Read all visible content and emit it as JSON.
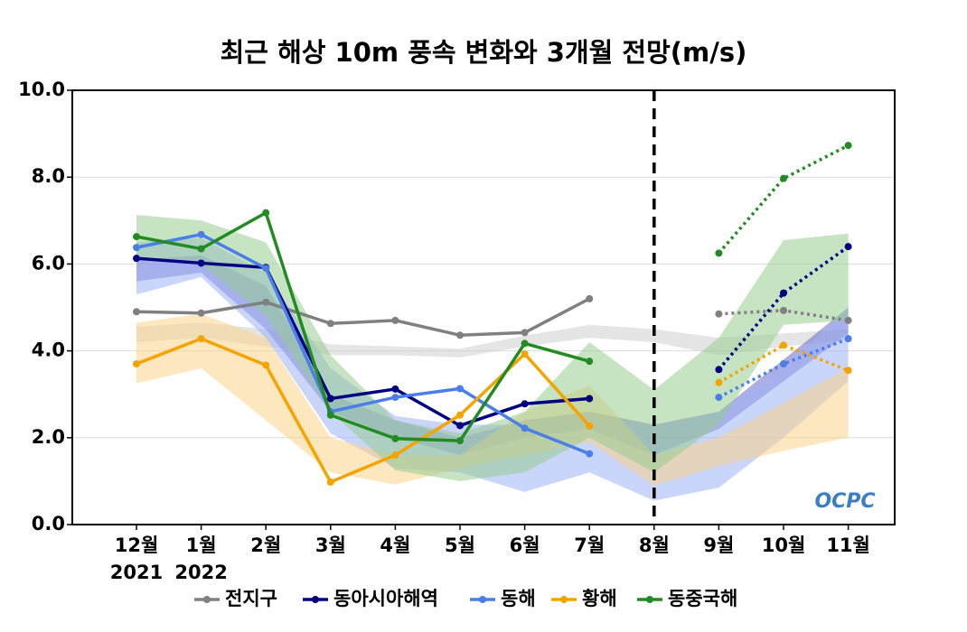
{
  "chart_data": {
    "type": "line",
    "title": "최근 해상 10m 풍속 변화와 3개월 전망(m/s)",
    "categories": [
      "12월",
      "1월",
      "2월",
      "3월",
      "4월",
      "5월",
      "6월",
      "7월",
      "8월",
      "9월",
      "10월",
      "11월"
    ],
    "category_sublabels": [
      "2021",
      "2022",
      null,
      null,
      null,
      null,
      null,
      null,
      null,
      null,
      null,
      null
    ],
    "divider_category": "8월",
    "forecast_start_category": "9월",
    "ylim": [
      0,
      10
    ],
    "yticks": [
      {
        "value": 0,
        "label": "0.0"
      },
      {
        "value": 2,
        "label": "2.0"
      },
      {
        "value": 4,
        "label": "4.0"
      },
      {
        "value": 6,
        "label": "6.0"
      },
      {
        "value": 8,
        "label": "8.0"
      },
      {
        "value": 10,
        "label": "10.0"
      }
    ],
    "grid": true,
    "legend": "bottom",
    "logo": "OCPC",
    "series": [
      {
        "name": "전지구",
        "color": "#808080",
        "band_color": "#d0d0d0",
        "values": [
          4.9,
          4.87,
          5.12,
          4.63,
          4.7,
          4.36,
          4.42,
          5.2,
          null,
          4.85,
          4.93,
          4.7
        ],
        "band_lower": [
          4.2,
          4.3,
          4.1,
          3.9,
          3.9,
          3.85,
          4.1,
          4.3,
          4.2,
          3.9,
          4.1,
          4.25
        ],
        "band_upper": [
          4.55,
          4.65,
          4.5,
          4.15,
          4.1,
          4.05,
          4.35,
          4.6,
          4.5,
          4.3,
          4.4,
          4.5
        ]
      },
      {
        "name": "동아시아해역",
        "color": "#000080",
        "band_color": "#6a6ac8",
        "values": [
          6.13,
          6.02,
          5.92,
          2.9,
          3.12,
          2.28,
          2.78,
          2.9,
          null,
          3.57,
          5.33,
          6.4
        ],
        "band_lower": [
          5.6,
          5.8,
          4.5,
          2.6,
          2.0,
          1.6,
          2.0,
          2.2,
          1.6,
          2.2,
          3.3,
          4.4
        ],
        "band_upper": [
          6.1,
          6.2,
          5.5,
          3.0,
          2.4,
          2.0,
          2.4,
          2.6,
          2.3,
          2.6,
          3.8,
          5.0
        ]
      },
      {
        "name": "동해",
        "color": "#4a7ee8",
        "band_color": "#9fb3f5",
        "values": [
          6.38,
          6.68,
          5.9,
          2.6,
          2.93,
          3.13,
          2.22,
          1.63,
          null,
          2.93,
          3.7,
          4.28
        ],
        "band_lower": [
          5.3,
          5.7,
          4.3,
          2.1,
          1.3,
          1.2,
          0.75,
          1.2,
          0.55,
          0.85,
          2.0,
          3.3
        ],
        "band_upper": [
          6.5,
          6.6,
          5.8,
          3.6,
          2.5,
          2.3,
          2.3,
          2.5,
          2.2,
          2.6,
          3.6,
          5.0
        ]
      },
      {
        "name": "황해",
        "color": "#f5a300",
        "band_color": "#fcd38a",
        "values": [
          3.7,
          4.28,
          3.67,
          0.98,
          1.6,
          2.52,
          3.93,
          2.27,
          null,
          3.27,
          4.13,
          3.55
        ],
        "band_lower": [
          3.25,
          3.6,
          2.4,
          1.2,
          0.92,
          1.3,
          1.6,
          1.9,
          0.9,
          1.35,
          1.7,
          2.0
        ],
        "band_upper": [
          4.65,
          4.85,
          4.3,
          2.0,
          1.6,
          1.6,
          2.6,
          3.2,
          1.6,
          2.0,
          2.8,
          3.6
        ]
      },
      {
        "name": "동중국해",
        "color": "#228b22",
        "band_color": "#98cc90",
        "values": [
          6.63,
          6.35,
          7.18,
          2.52,
          1.98,
          1.93,
          4.17,
          3.76,
          null,
          6.25,
          7.97,
          8.73
        ],
        "band_lower": [
          6.1,
          6.0,
          4.8,
          2.6,
          1.25,
          1.0,
          1.2,
          2.0,
          1.2,
          2.3,
          4.6,
          4.7
        ],
        "band_upper": [
          7.13,
          7.0,
          6.5,
          3.9,
          2.4,
          2.1,
          2.6,
          4.2,
          3.1,
          4.3,
          6.55,
          6.7
        ]
      }
    ]
  }
}
